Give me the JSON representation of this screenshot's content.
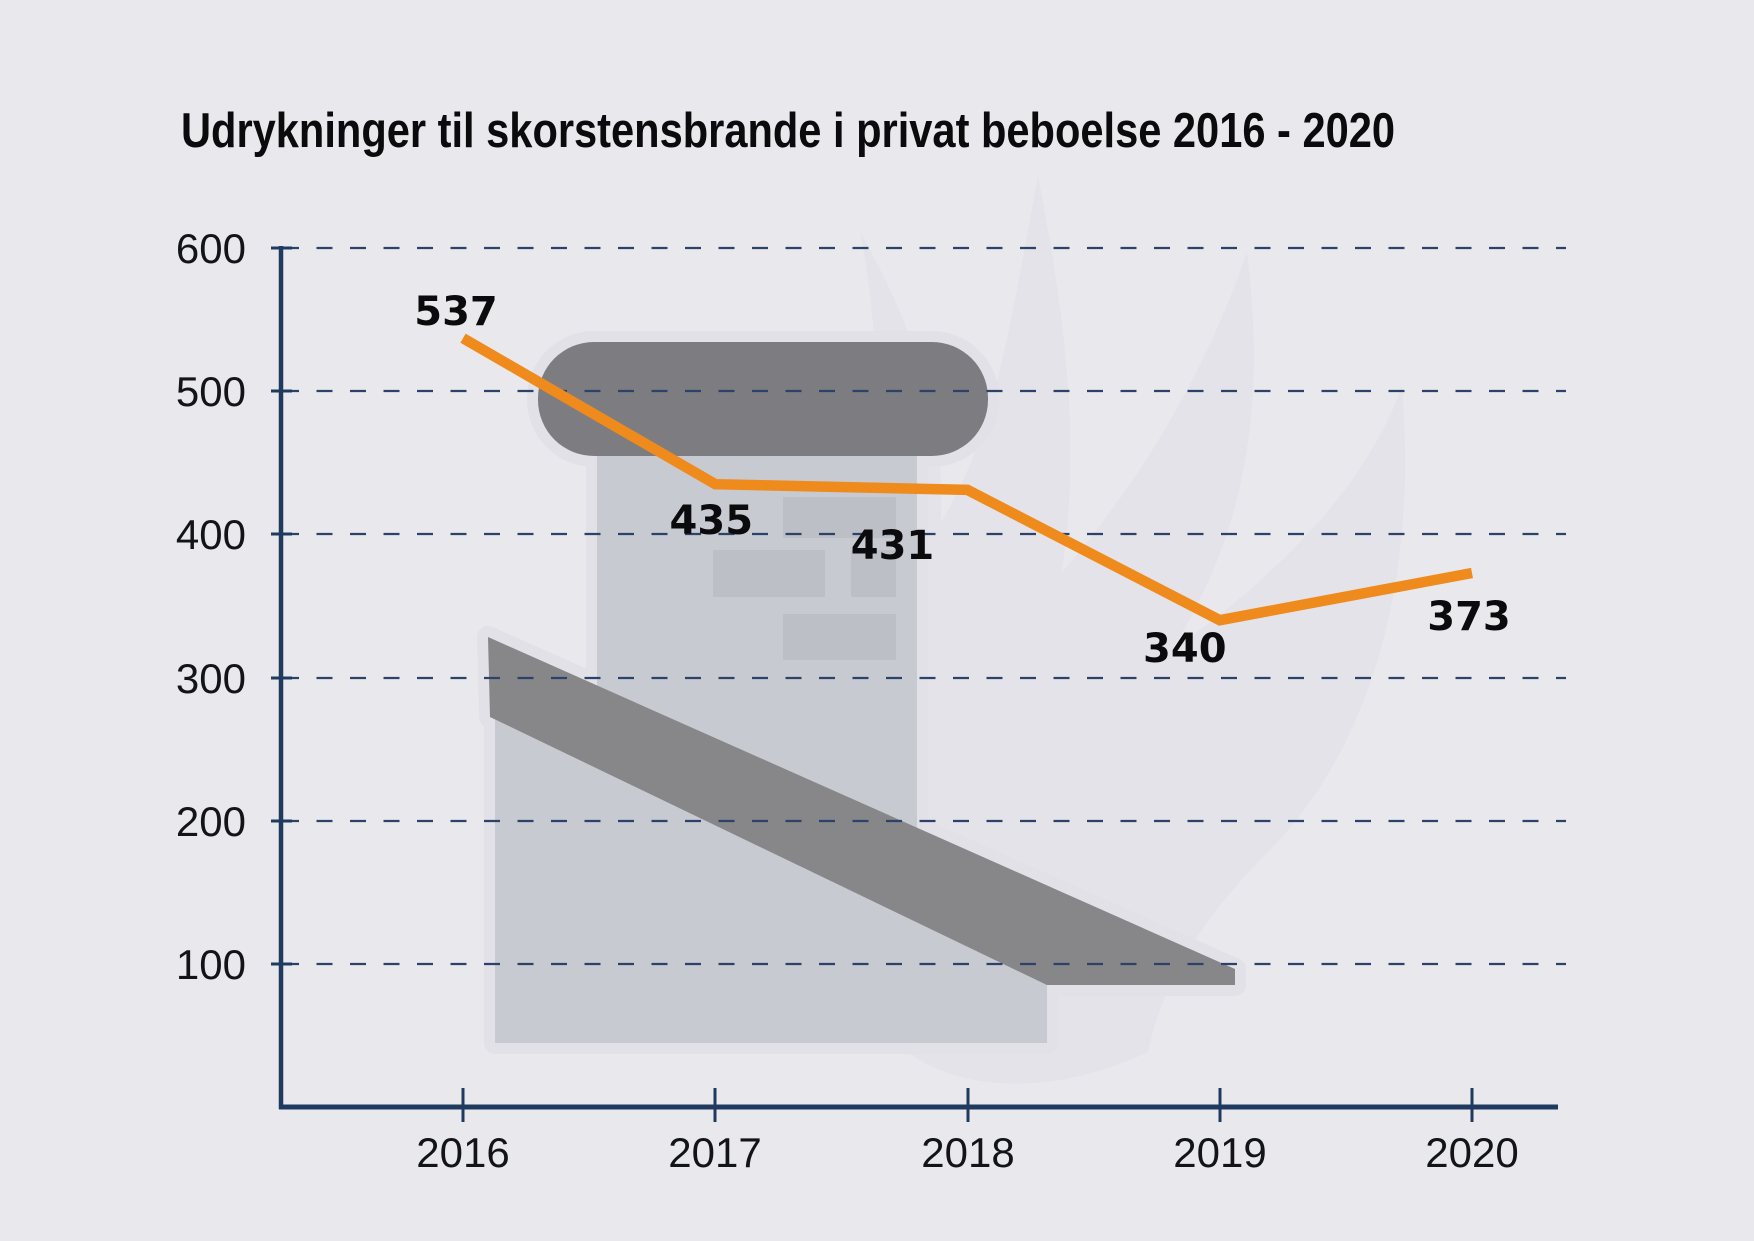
{
  "title": "Udrykninger til skorstensbrande i privat beboelse 2016 - 2020",
  "chart_data": {
    "type": "line",
    "categories": [
      "2016",
      "2017",
      "2018",
      "2019",
      "2020"
    ],
    "values": [
      537,
      435,
      431,
      340,
      373
    ],
    "data_labels": [
      "537",
      "435",
      "431",
      "340",
      "373"
    ],
    "title": "Udrykninger til skorstensbrande i privat beboelse 2016 - 2020",
    "xlabel": "",
    "ylabel": "",
    "y_ticks": [
      "600",
      "500",
      "400",
      "300",
      "200",
      "100"
    ],
    "ylim": [
      0,
      600
    ],
    "grid": "horizontal-dashed",
    "legend_position": "none",
    "line_color": "#ef8a1d"
  },
  "icons": {
    "watermark": "chimney-on-roof-with-flame-icon"
  },
  "colors": {
    "background": "#e9e9ed",
    "line": "#ef8a1d",
    "axis": "#1e3a5f",
    "grid": "#2d4268",
    "text": "#0b0b0d",
    "chimney_dark": "#7d7d81",
    "roof_dark": "#87878a",
    "chimney_light": "#c7cad1",
    "brick": "#bcbfc6",
    "watermark_flame": "#e4e3e9"
  }
}
